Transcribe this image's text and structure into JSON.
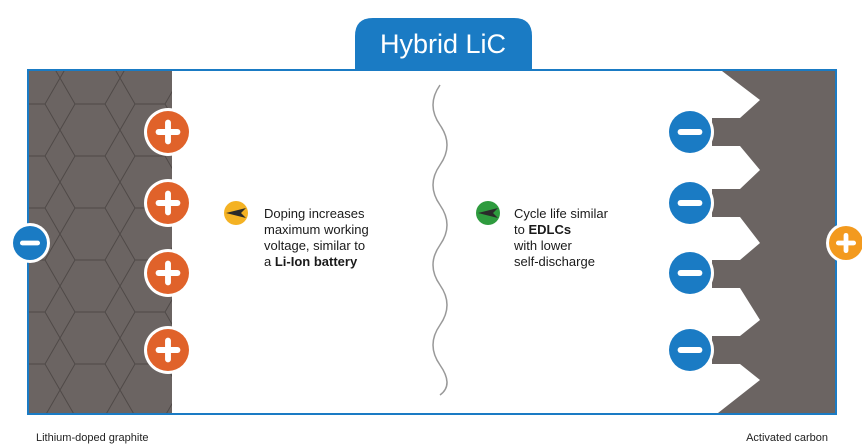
{
  "title": "Hybrid LiC",
  "left_note": {
    "lines": [
      [
        {
          "text": "Doping increases"
        }
      ],
      [
        {
          "text": "maximum working"
        }
      ],
      [
        {
          "text": "voltage, similar to"
        }
      ],
      [
        {
          "text": "a "
        },
        {
          "text": "Li-Ion battery",
          "bold": true
        }
      ]
    ]
  },
  "right_note": {
    "lines": [
      [
        {
          "text": "Cycle life similar"
        }
      ],
      [
        {
          "text": "to "
        },
        {
          "text": "EDLCs",
          "bold": true
        }
      ],
      [
        {
          "text": "with lower"
        }
      ],
      [
        {
          "text": "self-discharge"
        }
      ]
    ]
  },
  "left_caption": "Lithium-doped graphite",
  "right_caption": "Activated carbon"
}
